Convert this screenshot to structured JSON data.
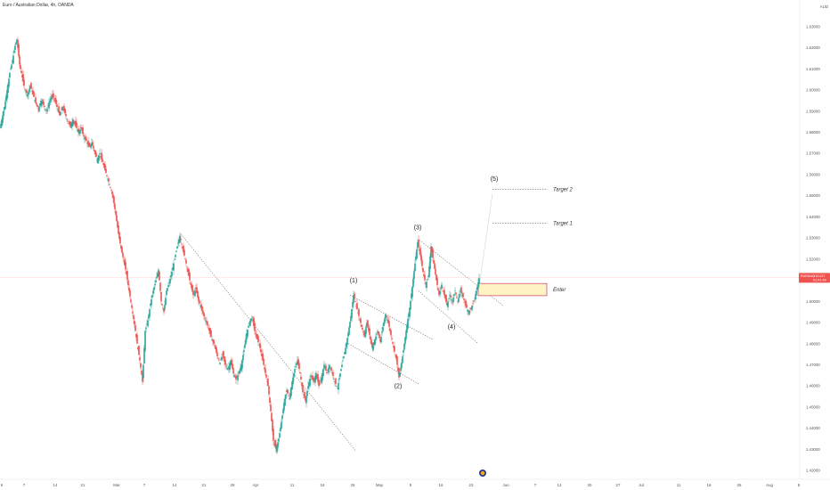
{
  "header": {
    "title": "Euro / Australian Dollar, 4h, OANDA",
    "currency": "AUD"
  },
  "colors": {
    "up": "#26a69a",
    "down": "#ef5350",
    "price_tag": "#ef5350",
    "entry_fill": "#fff3c4",
    "entry_border": "#c2185b"
  },
  "chart_data": {
    "type": "candlestick",
    "ylim": [
      1.415,
      1.635
    ],
    "yticks": [
      "1.63000",
      "1.62000",
      "1.61000",
      "1.60000",
      "1.59000",
      "1.58000",
      "1.57000",
      "1.56000",
      "1.55000",
      "1.54000",
      "1.53000",
      "1.52000",
      "1.51000",
      "1.50000",
      "1.49000",
      "1.48000",
      "1.47000",
      "1.46000",
      "1.45000",
      "1.44000",
      "1.43000",
      "1.42000"
    ],
    "xticks": [
      "6",
      "7",
      "14",
      "21",
      "Mar",
      "7",
      "14",
      "21",
      "28",
      "Apr",
      "11",
      "18",
      "25",
      "May",
      "9",
      "16",
      "23",
      "Jun",
      "7",
      "13",
      "20",
      "27",
      "Jul",
      "11",
      "18",
      "25",
      "Aug",
      "8"
    ],
    "current_price": {
      "symbol": "EURAUD",
      "value": "1.51137",
      "countdown": "01:41:49"
    },
    "price_path": [
      [
        0,
        1.582
      ],
      [
        2,
        1.586
      ],
      [
        5,
        1.592
      ],
      [
        8,
        1.6
      ],
      [
        11,
        1.608
      ],
      [
        14,
        1.614
      ],
      [
        17,
        1.621
      ],
      [
        19,
        1.624
      ],
      [
        22,
        1.612
      ],
      [
        25,
        1.606
      ],
      [
        28,
        1.6
      ],
      [
        31,
        1.598
      ],
      [
        34,
        1.602
      ],
      [
        37,
        1.598
      ],
      [
        40,
        1.594
      ],
      [
        43,
        1.591
      ],
      [
        46,
        1.595
      ],
      [
        49,
        1.593
      ],
      [
        52,
        1.59
      ],
      [
        55,
        1.594
      ],
      [
        58,
        1.597
      ],
      [
        61,
        1.596
      ],
      [
        64,
        1.592
      ],
      [
        67,
        1.588
      ],
      [
        70,
        1.592
      ],
      [
        73,
        1.589
      ],
      [
        76,
        1.585
      ],
      [
        79,
        1.583
      ],
      [
        82,
        1.586
      ],
      [
        85,
        1.583
      ],
      [
        88,
        1.58
      ],
      [
        91,
        1.582
      ],
      [
        94,
        1.578
      ],
      [
        97,
        1.576
      ],
      [
        100,
        1.573
      ],
      [
        103,
        1.575
      ],
      [
        106,
        1.571
      ],
      [
        109,
        1.567
      ],
      [
        112,
        1.57
      ],
      [
        115,
        1.566
      ],
      [
        118,
        1.562
      ],
      [
        121,
        1.558
      ],
      [
        124,
        1.554
      ],
      [
        127,
        1.549
      ],
      [
        130,
        1.541
      ],
      [
        133,
        1.532
      ],
      [
        136,
        1.525
      ],
      [
        139,
        1.519
      ],
      [
        142,
        1.513
      ],
      [
        145,
        1.505
      ],
      [
        148,
        1.497
      ],
      [
        151,
        1.489
      ],
      [
        154,
        1.48
      ],
      [
        157,
        1.472
      ],
      [
        160,
        1.462
      ],
      [
        163,
        1.486
      ],
      [
        166,
        1.491
      ],
      [
        169,
        1.499
      ],
      [
        172,
        1.505
      ],
      [
        175,
        1.51
      ],
      [
        178,
        1.515
      ],
      [
        181,
        1.5
      ],
      [
        184,
        1.495
      ],
      [
        187,
        1.505
      ],
      [
        190,
        1.509
      ],
      [
        193,
        1.514
      ],
      [
        196,
        1.52
      ],
      [
        199,
        1.526
      ],
      [
        202,
        1.531
      ],
      [
        205,
        1.525
      ],
      [
        208,
        1.52
      ],
      [
        211,
        1.514
      ],
      [
        214,
        1.508
      ],
      [
        217,
        1.503
      ],
      [
        220,
        1.506
      ],
      [
        223,
        1.5
      ],
      [
        226,
        1.497
      ],
      [
        229,
        1.493
      ],
      [
        232,
        1.49
      ],
      [
        235,
        1.486
      ],
      [
        238,
        1.482
      ],
      [
        241,
        1.479
      ],
      [
        244,
        1.474
      ],
      [
        247,
        1.471
      ],
      [
        250,
        1.475
      ],
      [
        253,
        1.47
      ],
      [
        256,
        1.468
      ],
      [
        259,
        1.472
      ],
      [
        262,
        1.466
      ],
      [
        265,
        1.463
      ],
      [
        268,
        1.466
      ],
      [
        271,
        1.47
      ],
      [
        274,
        1.477
      ],
      [
        277,
        1.485
      ],
      [
        280,
        1.49
      ],
      [
        283,
        1.493
      ],
      [
        286,
        1.486
      ],
      [
        289,
        1.482
      ],
      [
        292,
        1.478
      ],
      [
        295,
        1.472
      ],
      [
        298,
        1.466
      ],
      [
        301,
        1.46
      ],
      [
        304,
        1.448
      ],
      [
        307,
        1.434
      ],
      [
        310,
        1.43
      ],
      [
        313,
        1.435
      ],
      [
        316,
        1.443
      ],
      [
        319,
        1.452
      ],
      [
        322,
        1.458
      ],
      [
        325,
        1.454
      ],
      [
        328,
        1.462
      ],
      [
        331,
        1.468
      ],
      [
        334,
        1.472
      ],
      [
        337,
        1.466
      ],
      [
        340,
        1.457
      ],
      [
        343,
        1.453
      ],
      [
        346,
        1.46
      ],
      [
        349,
        1.465
      ],
      [
        352,
        1.462
      ],
      [
        355,
        1.466
      ],
      [
        358,
        1.46
      ],
      [
        361,
        1.464
      ],
      [
        364,
        1.47
      ],
      [
        367,
        1.466
      ],
      [
        370,
        1.47
      ],
      [
        373,
        1.466
      ],
      [
        376,
        1.462
      ],
      [
        379,
        1.459
      ],
      [
        382,
        1.466
      ],
      [
        385,
        1.472
      ],
      [
        388,
        1.478
      ],
      [
        391,
        1.485
      ],
      [
        394,
        1.493
      ],
      [
        397,
        1.503
      ],
      [
        400,
        1.498
      ],
      [
        403,
        1.493
      ],
      [
        406,
        1.488
      ],
      [
        409,
        1.484
      ],
      [
        412,
        1.49
      ],
      [
        415,
        1.484
      ],
      [
        418,
        1.478
      ],
      [
        421,
        1.482
      ],
      [
        424,
        1.486
      ],
      [
        427,
        1.481
      ],
      [
        430,
        1.488
      ],
      [
        433,
        1.494
      ],
      [
        436,
        1.49
      ],
      [
        439,
        1.484
      ],
      [
        442,
        1.478
      ],
      [
        445,
        1.473
      ],
      [
        448,
        1.464
      ],
      [
        451,
        1.471
      ],
      [
        454,
        1.48
      ],
      [
        457,
        1.489
      ],
      [
        460,
        1.497
      ],
      [
        463,
        1.507
      ],
      [
        466,
        1.518
      ],
      [
        469,
        1.528
      ],
      [
        472,
        1.522
      ],
      [
        475,
        1.514
      ],
      [
        478,
        1.508
      ],
      [
        481,
        1.512
      ],
      [
        484,
        1.526
      ],
      [
        487,
        1.518
      ],
      [
        490,
        1.51
      ],
      [
        493,
        1.503
      ],
      [
        496,
        1.508
      ],
      [
        499,
        1.503
      ],
      [
        502,
        1.498
      ],
      [
        505,
        1.503
      ],
      [
        508,
        1.5
      ],
      [
        511,
        1.505
      ],
      [
        514,
        1.5
      ],
      [
        517,
        1.505
      ],
      [
        520,
        1.502
      ],
      [
        523,
        1.498
      ],
      [
        526,
        1.495
      ],
      [
        529,
        1.497
      ],
      [
        532,
        1.5
      ],
      [
        535,
        1.505
      ],
      [
        538,
        1.511
      ]
    ],
    "wave_labels": [
      {
        "label": "(1)",
        "x": 397,
        "y": 1.509
      },
      {
        "label": "(2)",
        "x": 447,
        "y": 1.459
      },
      {
        "label": "(3)",
        "x": 469,
        "y": 1.534
      },
      {
        "label": "(4)",
        "x": 507,
        "y": 1.487
      },
      {
        "label": "(5)",
        "x": 555,
        "y": 1.557
      }
    ],
    "annotations": {
      "target2": "Target 2",
      "target1": "Target 1",
      "enter": "Enter"
    },
    "target2_price": 1.553,
    "target1_price": 1.537,
    "entry_zone": [
      1.5027,
      1.5085
    ]
  }
}
